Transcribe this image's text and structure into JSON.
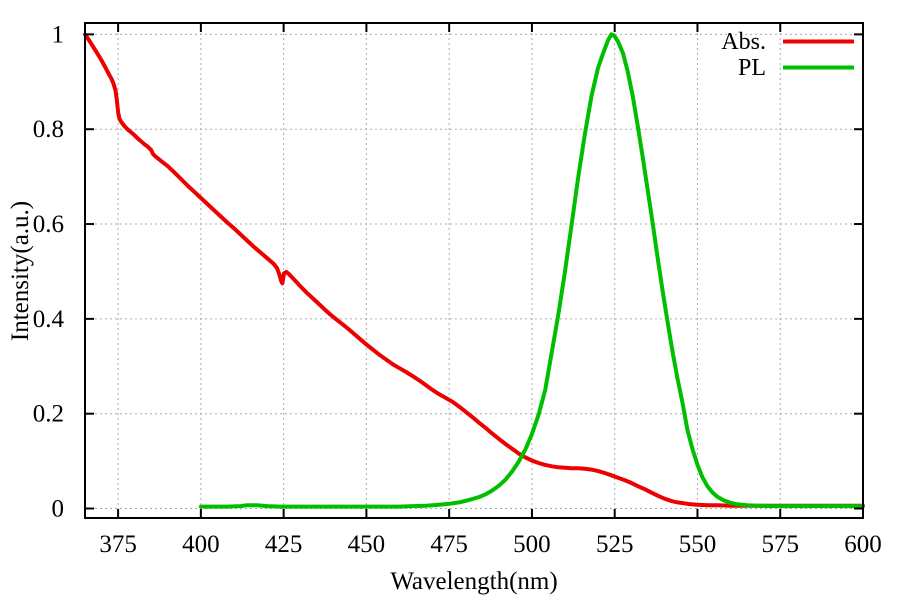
{
  "chart_data": {
    "type": "line",
    "title": "",
    "xlabel": "Wavelength(nm)",
    "ylabel": "Intensity(a.u.)",
    "xlim": [
      365,
      600
    ],
    "ylim": [
      -0.02,
      1.024
    ],
    "grid": true,
    "x_ticks": [
      375,
      400,
      425,
      450,
      475,
      500,
      525,
      550,
      575,
      600
    ],
    "x_tick_labels": [
      "375",
      "400",
      "425",
      "450",
      "475",
      "500",
      "525",
      "550",
      "575",
      "600"
    ],
    "y_ticks": [
      0,
      0.2,
      0.4,
      0.6,
      0.8,
      1
    ],
    "y_tick_labels": [
      "0",
      "0.2",
      "0.4",
      "0.6",
      "0.8",
      "1"
    ],
    "legend": {
      "position": "top-right",
      "entries": [
        {
          "label": "Abs.",
          "color": "#ec0000"
        },
        {
          "label": "PL",
          "color": "#00bf00"
        }
      ]
    },
    "series": [
      {
        "name": "Abs.",
        "color": "#ec0000",
        "points": [
          [
            365,
            1.0
          ],
          [
            366,
            0.99
          ],
          [
            367,
            0.979
          ],
          [
            368,
            0.968
          ],
          [
            369,
            0.957
          ],
          [
            370,
            0.945
          ],
          [
            371,
            0.932
          ],
          [
            372,
            0.919
          ],
          [
            373,
            0.906
          ],
          [
            373.6,
            0.896
          ],
          [
            374.2,
            0.882
          ],
          [
            374.6,
            0.862
          ],
          [
            375,
            0.836
          ],
          [
            375.4,
            0.822
          ],
          [
            376,
            0.815
          ],
          [
            377,
            0.806
          ],
          [
            378,
            0.799
          ],
          [
            379,
            0.793
          ],
          [
            380,
            0.787
          ],
          [
            381,
            0.78
          ],
          [
            382,
            0.774
          ],
          [
            383,
            0.768
          ],
          [
            384,
            0.763
          ],
          [
            385,
            0.756
          ],
          [
            385.6,
            0.747
          ],
          [
            386.4,
            0.742
          ],
          [
            388,
            0.733
          ],
          [
            390,
            0.722
          ],
          [
            392,
            0.709
          ],
          [
            394,
            0.695
          ],
          [
            396,
            0.681
          ],
          [
            398,
            0.668
          ],
          [
            400,
            0.655
          ],
          [
            402,
            0.642
          ],
          [
            404,
            0.629
          ],
          [
            406,
            0.616
          ],
          [
            408,
            0.603
          ],
          [
            410,
            0.591
          ],
          [
            412,
            0.578
          ],
          [
            414,
            0.565
          ],
          [
            416,
            0.552
          ],
          [
            418,
            0.54
          ],
          [
            420,
            0.528
          ],
          [
            421,
            0.522
          ],
          [
            422,
            0.516
          ],
          [
            423,
            0.507
          ],
          [
            423.7,
            0.494
          ],
          [
            424.2,
            0.481
          ],
          [
            424.6,
            0.475
          ],
          [
            425.1,
            0.496
          ],
          [
            425.8,
            0.499
          ],
          [
            426.5,
            0.495
          ],
          [
            428,
            0.484
          ],
          [
            430,
            0.469
          ],
          [
            432,
            0.455
          ],
          [
            434,
            0.442
          ],
          [
            436,
            0.429
          ],
          [
            438,
            0.416
          ],
          [
            440,
            0.404
          ],
          [
            442,
            0.393
          ],
          [
            444,
            0.382
          ],
          [
            446,
            0.37
          ],
          [
            448,
            0.358
          ],
          [
            450,
            0.346
          ],
          [
            452,
            0.335
          ],
          [
            454,
            0.324
          ],
          [
            456,
            0.314
          ],
          [
            458,
            0.304
          ],
          [
            460,
            0.296
          ],
          [
            462,
            0.288
          ],
          [
            464,
            0.279
          ],
          [
            466,
            0.27
          ],
          [
            468,
            0.26
          ],
          [
            470,
            0.25
          ],
          [
            472,
            0.241
          ],
          [
            474,
            0.233
          ],
          [
            476,
            0.225
          ],
          [
            478,
            0.215
          ],
          [
            480,
            0.204
          ],
          [
            482,
            0.193
          ],
          [
            484,
            0.181
          ],
          [
            486,
            0.17
          ],
          [
            488,
            0.158
          ],
          [
            490,
            0.147
          ],
          [
            492,
            0.136
          ],
          [
            494,
            0.126
          ],
          [
            496,
            0.116
          ],
          [
            498,
            0.108
          ],
          [
            500,
            0.101
          ],
          [
            502,
            0.096
          ],
          [
            504,
            0.092
          ],
          [
            506,
            0.089
          ],
          [
            508,
            0.087
          ],
          [
            510,
            0.086
          ],
          [
            512,
            0.085
          ],
          [
            514,
            0.085
          ],
          [
            516,
            0.084
          ],
          [
            518,
            0.082
          ],
          [
            520,
            0.079
          ],
          [
            522,
            0.075
          ],
          [
            524,
            0.07
          ],
          [
            526,
            0.065
          ],
          [
            528,
            0.06
          ],
          [
            530,
            0.054
          ],
          [
            532,
            0.047
          ],
          [
            534,
            0.041
          ],
          [
            536,
            0.034
          ],
          [
            538,
            0.027
          ],
          [
            540,
            0.021
          ],
          [
            542,
            0.016
          ],
          [
            544,
            0.013
          ],
          [
            546,
            0.011
          ],
          [
            548,
            0.009
          ],
          [
            550,
            0.008
          ],
          [
            553,
            0.007
          ],
          [
            556,
            0.007
          ],
          [
            560,
            0.006
          ],
          [
            565,
            0.006
          ],
          [
            570,
            0.006
          ],
          [
            575,
            0.006
          ],
          [
            580,
            0.006
          ],
          [
            585,
            0.006
          ],
          [
            590,
            0.006
          ],
          [
            595,
            0.006
          ],
          [
            600,
            0.006
          ]
        ]
      },
      {
        "name": "PL",
        "color": "#00bf00",
        "points": [
          [
            400,
            0.004
          ],
          [
            404,
            0.004
          ],
          [
            408,
            0.004
          ],
          [
            412,
            0.005
          ],
          [
            414,
            0.007
          ],
          [
            417,
            0.007
          ],
          [
            420,
            0.005
          ],
          [
            424,
            0.004
          ],
          [
            428,
            0.004
          ],
          [
            432,
            0.004
          ],
          [
            436,
            0.004
          ],
          [
            440,
            0.004
          ],
          [
            444,
            0.004
          ],
          [
            448,
            0.004
          ],
          [
            452,
            0.004
          ],
          [
            456,
            0.004
          ],
          [
            460,
            0.004
          ],
          [
            464,
            0.005
          ],
          [
            468,
            0.006
          ],
          [
            472,
            0.008
          ],
          [
            475,
            0.01
          ],
          [
            478,
            0.013
          ],
          [
            481,
            0.018
          ],
          [
            484,
            0.024
          ],
          [
            486,
            0.03
          ],
          [
            488,
            0.038
          ],
          [
            490,
            0.048
          ],
          [
            492,
            0.061
          ],
          [
            494,
            0.078
          ],
          [
            496,
            0.099
          ],
          [
            498,
            0.124
          ],
          [
            500,
            0.157
          ],
          [
            502,
            0.198
          ],
          [
            504,
            0.25
          ],
          [
            506,
            0.33
          ],
          [
            508,
            0.41
          ],
          [
            510,
            0.5
          ],
          [
            512,
            0.6
          ],
          [
            514,
            0.7
          ],
          [
            516,
            0.79
          ],
          [
            518,
            0.87
          ],
          [
            520,
            0.93
          ],
          [
            521.5,
            0.96
          ],
          [
            523,
            0.988
          ],
          [
            524,
            1.0
          ],
          [
            525,
            0.996
          ],
          [
            526,
            0.985
          ],
          [
            527.5,
            0.96
          ],
          [
            529,
            0.92
          ],
          [
            530.5,
            0.868
          ],
          [
            532,
            0.805
          ],
          [
            533.5,
            0.74
          ],
          [
            535,
            0.67
          ],
          [
            536.5,
            0.6
          ],
          [
            538,
            0.528
          ],
          [
            539.5,
            0.458
          ],
          [
            541,
            0.392
          ],
          [
            542.5,
            0.33
          ],
          [
            544,
            0.273
          ],
          [
            545.5,
            0.222
          ],
          [
            547,
            0.165
          ],
          [
            548.5,
            0.125
          ],
          [
            550,
            0.092
          ],
          [
            551.5,
            0.066
          ],
          [
            553,
            0.047
          ],
          [
            554.5,
            0.034
          ],
          [
            556,
            0.025
          ],
          [
            558,
            0.017
          ],
          [
            560,
            0.012
          ],
          [
            562,
            0.009
          ],
          [
            565,
            0.007
          ],
          [
            568,
            0.006
          ],
          [
            572,
            0.005
          ],
          [
            576,
            0.005
          ],
          [
            580,
            0.005
          ],
          [
            585,
            0.005
          ],
          [
            590,
            0.005
          ],
          [
            595,
            0.005
          ],
          [
            600,
            0.005
          ]
        ]
      }
    ],
    "colors": {
      "background": "#ffffff",
      "frame": "#000000",
      "grid": "#aaaaaa",
      "text": "#000000"
    }
  }
}
